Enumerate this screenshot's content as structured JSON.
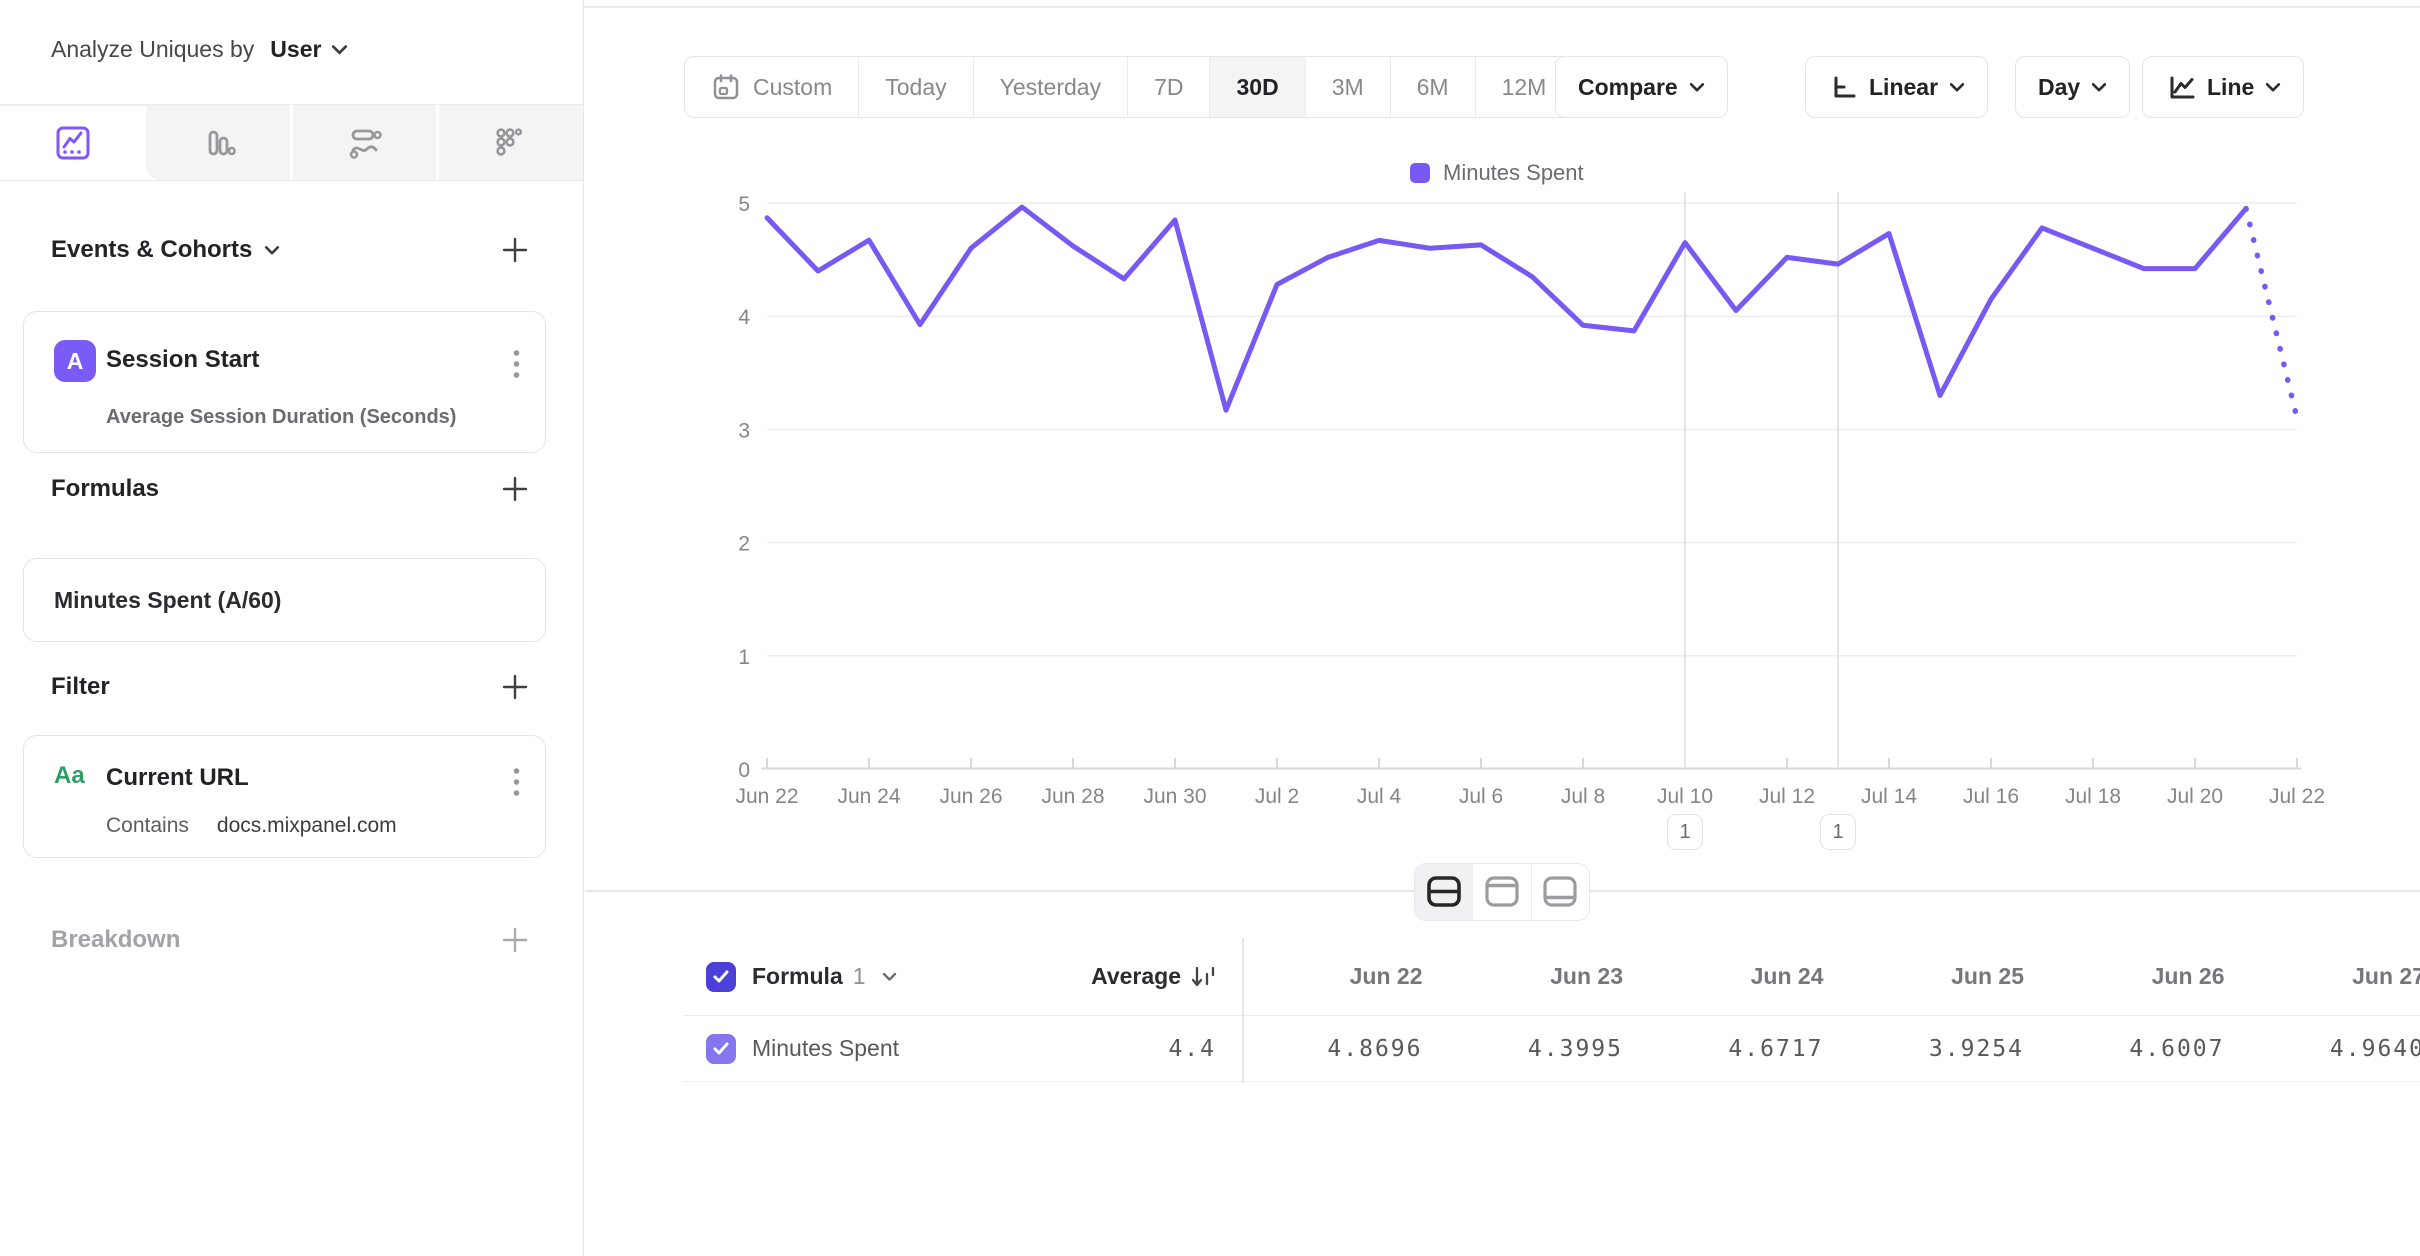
{
  "sidebar": {
    "analyze_label": "Analyze Uniques by",
    "analyze_value": "User",
    "events_title": "Events & Cohorts",
    "event_card": {
      "badge": "A",
      "title": "Session Start",
      "subtitle": "Average Session Duration (Seconds)"
    },
    "formulas_title": "Formulas",
    "formula_card": {
      "title": "Minutes Spent (A/60)"
    },
    "filter_title": "Filter",
    "filter_card": {
      "badge": "Aa",
      "title": "Current URL",
      "operator": "Contains",
      "value": "docs.mixpanel.com"
    },
    "breakdown_title": "Breakdown"
  },
  "toolbar": {
    "date_ranges": [
      "Custom",
      "Today",
      "Yesterday",
      "7D",
      "30D",
      "3M",
      "6M",
      "12M"
    ],
    "active_range": "30D",
    "compare_label": "Compare",
    "scale_label": "Linear",
    "granularity_label": "Day",
    "chart_type_label": "Line"
  },
  "chart_data": {
    "type": "line",
    "legend": "Minutes Spent",
    "legend_position": "top-center",
    "line_color": "#7859f3",
    "ylim": [
      0,
      5
    ],
    "yticks": [
      0,
      1,
      2,
      3,
      4,
      5
    ],
    "xtick_every": 2,
    "incomplete_last_point": true,
    "x": [
      "Jun 22",
      "Jun 23",
      "Jun 24",
      "Jun 25",
      "Jun 26",
      "Jun 27",
      "Jun 28",
      "Jun 29",
      "Jun 30",
      "Jul 1",
      "Jul 2",
      "Jul 3",
      "Jul 4",
      "Jul 5",
      "Jul 6",
      "Jul 7",
      "Jul 8",
      "Jul 9",
      "Jul 10",
      "Jul 11",
      "Jul 12",
      "Jul 13",
      "Jul 14",
      "Jul 15",
      "Jul 16",
      "Jul 17",
      "Jul 18",
      "Jul 19",
      "Jul 20",
      "Jul 21",
      "Jul 22"
    ],
    "series": [
      {
        "name": "Minutes Spent",
        "values": [
          4.8696,
          4.3995,
          4.6717,
          3.9254,
          4.6007,
          4.964,
          4.62,
          4.33,
          4.85,
          3.17,
          4.28,
          4.52,
          4.67,
          4.6,
          4.63,
          4.35,
          3.92,
          3.87,
          4.65,
          4.05,
          4.52,
          4.46,
          4.73,
          3.3,
          4.15,
          4.78,
          4.6,
          4.42,
          4.42,
          4.95,
          3.1
        ]
      }
    ],
    "annotations": [
      {
        "x": "Jul 10",
        "label": "1"
      },
      {
        "x": "Jul 13",
        "label": "1"
      }
    ]
  },
  "table": {
    "formula_label": "Formula",
    "formula_index": "1",
    "average_label": "Average",
    "date_columns": [
      "Jun 22",
      "Jun 23",
      "Jun 24",
      "Jun 25",
      "Jun 26",
      "Jun 27"
    ],
    "rows": [
      {
        "name": "Minutes Spent",
        "average": "4.4",
        "values": [
          "4.8696",
          "4.3995",
          "4.6717",
          "3.9254",
          "4.6007",
          "4.9640"
        ],
        "checked": true
      }
    ]
  },
  "colors": {
    "accent_purple": "#7859f3",
    "header_checkbox": "#4c40d9",
    "row_checkbox": "#8576f0",
    "event_badge": "#7b5bf7",
    "filter_badge_green": "#2f9e63"
  }
}
